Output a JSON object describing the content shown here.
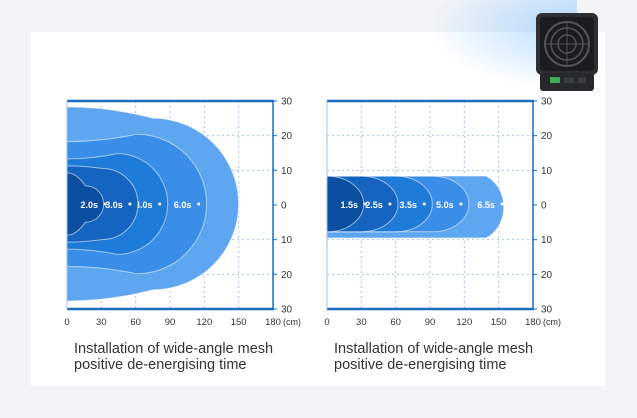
{
  "caption_left": {
    "line1": "Installation of wide-angle mesh",
    "line2": "positive de-energising time"
  },
  "caption_right": {
    "line1": "Installation of wide-angle mesh",
    "line2": "positive de-energising time"
  },
  "x_ticks": [
    "0",
    "30",
    "60",
    "90",
    "120",
    "150",
    "180"
  ],
  "x_unit": "(cm)",
  "y_ticks": [
    "30",
    "20",
    "10",
    "0",
    "10",
    "20",
    "30"
  ],
  "left_chart": {
    "zones": [
      {
        "label": "2.0s",
        "reach_cm": 32,
        "half_width_cm": 9,
        "color": "#0b4ea2"
      },
      {
        "label": "3.0s",
        "reach_cm": 62,
        "half_width_cm": 11,
        "color": "#1565c0"
      },
      {
        "label": "4.0s",
        "reach_cm": 88,
        "half_width_cm": 13,
        "color": "#1e7bd8"
      },
      {
        "label": "6.0s",
        "reach_cm": 122,
        "half_width_cm": 18,
        "color": "#3b8ee8"
      },
      {
        "label": "",
        "reach_cm": 150,
        "half_width_cm": 28,
        "color": "#5ea7f0"
      }
    ]
  },
  "right_chart": {
    "zones": [
      {
        "label": "1.5s",
        "reach_cm": 32,
        "half_width_cm": 8,
        "color": "#0b4ea2"
      },
      {
        "label": "2.5s",
        "reach_cm": 62,
        "half_width_cm": 8,
        "color": "#1565c0"
      },
      {
        "label": "3.5s",
        "reach_cm": 92,
        "half_width_cm": 8,
        "color": "#1e7bd8"
      },
      {
        "label": "5.0s",
        "reach_cm": 124,
        "half_width_cm": 8,
        "color": "#3b8ee8"
      },
      {
        "label": "6.5s",
        "reach_cm": 160,
        "half_width_cm": 8,
        "color": "#5ea7f0"
      }
    ]
  },
  "colors": {
    "axis": "#1a6fc0",
    "grid": "#9cc4ec",
    "label": "#333333"
  }
}
